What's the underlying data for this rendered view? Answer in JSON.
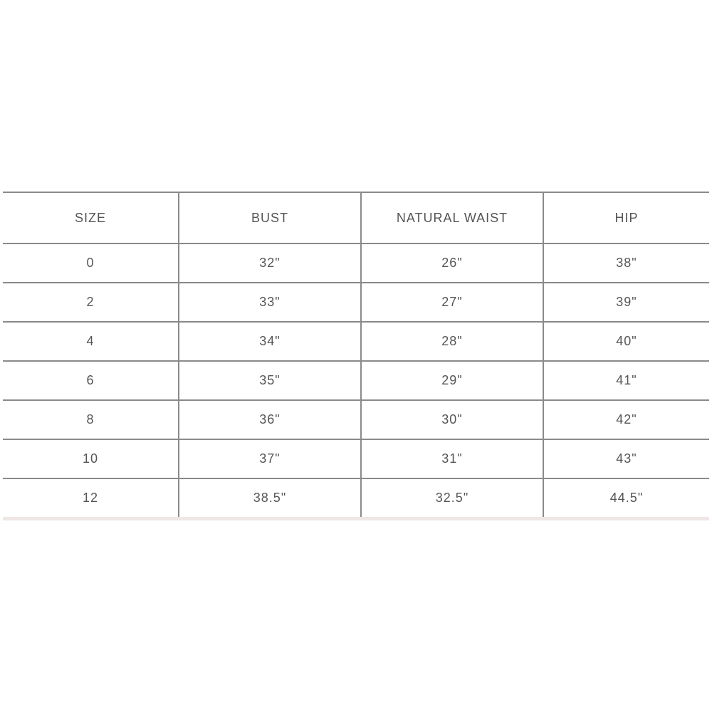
{
  "table": {
    "header": [
      "SIZE",
      "BUST",
      "NATURAL WAIST",
      "HIP"
    ],
    "rows": [
      [
        "0",
        "32\"",
        "26\"",
        "38\""
      ],
      [
        "2",
        "33\"",
        "27\"",
        "39\""
      ],
      [
        "4",
        "34\"",
        "28\"",
        "40\""
      ],
      [
        "6",
        "35\"",
        "29\"",
        "41\""
      ],
      [
        "8",
        "36\"",
        "30\"",
        "42\""
      ],
      [
        "10",
        "37\"",
        "31\"",
        "43\""
      ],
      [
        "12",
        "38.5\"",
        "32.5\"",
        "44.5\""
      ]
    ]
  }
}
